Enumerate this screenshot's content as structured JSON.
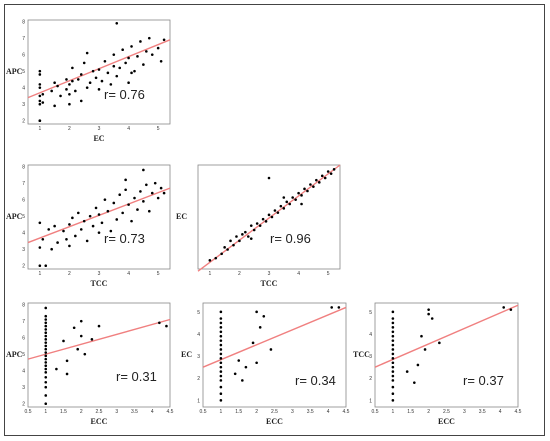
{
  "colors": {
    "points": "#000000",
    "fit_line": "#f08080",
    "frame": "#444444"
  },
  "chart_data": [
    {
      "type": "scatter",
      "xlabel": "EC",
      "ylabel": "APC",
      "annotation": "r= 0.76",
      "xticks": [
        "1",
        "2",
        "3",
        "4",
        "5"
      ],
      "yticks": [
        "2",
        "3",
        "4",
        "5",
        "6",
        "7",
        "8"
      ],
      "xlim": [
        0.6,
        5.4
      ],
      "ylim": [
        1.8,
        8.1
      ],
      "fit": [
        [
          0.6,
          3.4
        ],
        [
          5.4,
          6.9
        ]
      ],
      "points": [
        [
          1,
          2
        ],
        [
          1,
          2
        ],
        [
          1,
          3
        ],
        [
          1,
          3.2
        ],
        [
          1,
          3.5
        ],
        [
          1,
          4
        ],
        [
          1,
          4.2
        ],
        [
          1,
          4.8
        ],
        [
          1,
          5
        ],
        [
          1.1,
          3.1
        ],
        [
          1.1,
          3.6
        ],
        [
          1.4,
          3.8
        ],
        [
          1.5,
          4.3
        ],
        [
          1.5,
          2.9
        ],
        [
          1.6,
          4.1
        ],
        [
          1.7,
          3.5
        ],
        [
          1.9,
          4.5
        ],
        [
          1.9,
          3.9
        ],
        [
          2,
          3
        ],
        [
          2,
          3.6
        ],
        [
          2,
          4.2
        ],
        [
          2.1,
          5.2
        ],
        [
          2.1,
          4.4
        ],
        [
          2.2,
          3.8
        ],
        [
          2.3,
          4.5
        ],
        [
          2.4,
          3.2
        ],
        [
          2.4,
          4.8
        ],
        [
          2.5,
          5.5
        ],
        [
          2.6,
          4
        ],
        [
          2.7,
          4.3
        ],
        [
          2.8,
          5
        ],
        [
          2.9,
          4.6
        ],
        [
          3,
          5.1
        ],
        [
          3,
          3.9
        ],
        [
          3.1,
          4.4
        ],
        [
          3.2,
          5.6
        ],
        [
          3.3,
          4.9
        ],
        [
          3.4,
          4.2
        ],
        [
          3.5,
          5.3
        ],
        [
          3.5,
          6
        ],
        [
          3.6,
          4.7
        ],
        [
          3.7,
          5.2
        ],
        [
          3.8,
          6.3
        ],
        [
          3.9,
          5.5
        ],
        [
          4,
          4.3
        ],
        [
          4,
          5.8
        ],
        [
          4.1,
          6.5
        ],
        [
          4.2,
          5
        ],
        [
          4.3,
          5.9
        ],
        [
          4.4,
          6.8
        ],
        [
          4.5,
          5.4
        ],
        [
          4.6,
          6.2
        ],
        [
          4.7,
          7
        ],
        [
          4.8,
          6
        ],
        [
          5,
          6.4
        ],
        [
          5.1,
          5.6
        ],
        [
          5.2,
          6.9
        ],
        [
          3.6,
          7.9
        ],
        [
          4.1,
          4.9
        ],
        [
          2.6,
          6.1
        ]
      ]
    },
    {
      "type": "scatter",
      "xlabel": "TCC",
      "ylabel": "APC",
      "annotation": "r= 0.73",
      "xticks": [
        "1",
        "2",
        "3",
        "4",
        "5"
      ],
      "yticks": [
        "2",
        "3",
        "4",
        "5",
        "6",
        "7",
        "8"
      ],
      "xlim": [
        0.6,
        5.4
      ],
      "ylim": [
        1.8,
        8.1
      ],
      "fit": [
        [
          0.6,
          3.4
        ],
        [
          5.4,
          6.7
        ]
      ],
      "points": [
        [
          1,
          2
        ],
        [
          1,
          3.1
        ],
        [
          1,
          4.6
        ],
        [
          1.1,
          3.6
        ],
        [
          1.2,
          2
        ],
        [
          1.3,
          4.2
        ],
        [
          1.4,
          3
        ],
        [
          1.5,
          4.4
        ],
        [
          1.6,
          3.4
        ],
        [
          1.8,
          4.1
        ],
        [
          1.9,
          3.6
        ],
        [
          2,
          4.5
        ],
        [
          2,
          3.2
        ],
        [
          2.1,
          4.9
        ],
        [
          2.2,
          3.8
        ],
        [
          2.3,
          5.2
        ],
        [
          2.4,
          4.2
        ],
        [
          2.5,
          4.7
        ],
        [
          2.6,
          3.5
        ],
        [
          2.7,
          5
        ],
        [
          2.8,
          4.4
        ],
        [
          2.9,
          5.5
        ],
        [
          3,
          4
        ],
        [
          3,
          5.1
        ],
        [
          3.1,
          4.6
        ],
        [
          3.2,
          6
        ],
        [
          3.3,
          5.3
        ],
        [
          3.4,
          4.1
        ],
        [
          3.5,
          5.8
        ],
        [
          3.6,
          4.8
        ],
        [
          3.7,
          6.3
        ],
        [
          3.8,
          5.2
        ],
        [
          3.9,
          6.6
        ],
        [
          4,
          5.7
        ],
        [
          4.1,
          4.7
        ],
        [
          4.2,
          6.1
        ],
        [
          4.3,
          5.4
        ],
        [
          4.4,
          6.5
        ],
        [
          4.5,
          5.9
        ],
        [
          4.6,
          6.9
        ],
        [
          4.7,
          5.3
        ],
        [
          4.8,
          6.4
        ],
        [
          4.9,
          7
        ],
        [
          5,
          6.1
        ],
        [
          5.1,
          6.7
        ],
        [
          5.2,
          6.4
        ],
        [
          4.5,
          7.8
        ],
        [
          3.9,
          7.2
        ]
      ]
    },
    {
      "type": "scatter",
      "xlabel": "TCC",
      "ylabel": "EC",
      "annotation": "r= 0.96",
      "xticks": [
        "1",
        "2",
        "3",
        "4",
        "5"
      ],
      "yticks": [],
      "xlim": [
        0.6,
        5.4
      ],
      "ylim": [
        0.6,
        5.4
      ],
      "fit": [
        [
          0.6,
          0.5
        ],
        [
          5.4,
          5.4
        ]
      ],
      "points": [
        [
          1,
          1
        ],
        [
          1.2,
          1.1
        ],
        [
          1.4,
          1.3
        ],
        [
          1.5,
          1.6
        ],
        [
          1.6,
          1.5
        ],
        [
          1.7,
          1.9
        ],
        [
          1.8,
          1.7
        ],
        [
          1.9,
          2.1
        ],
        [
          2,
          1.9
        ],
        [
          2.1,
          2.2
        ],
        [
          2.2,
          2.3
        ],
        [
          2.3,
          2.1
        ],
        [
          2.4,
          2.6
        ],
        [
          2.5,
          2.4
        ],
        [
          2.6,
          2.7
        ],
        [
          2.7,
          2.6
        ],
        [
          2.8,
          2.9
        ],
        [
          2.9,
          2.8
        ],
        [
          3,
          3.1
        ],
        [
          3.1,
          3
        ],
        [
          3.2,
          3.3
        ],
        [
          3.3,
          3.2
        ],
        [
          3.4,
          3.5
        ],
        [
          3.5,
          3.4
        ],
        [
          3.6,
          3.7
        ],
        [
          3.7,
          3.6
        ],
        [
          3.8,
          3.9
        ],
        [
          3.9,
          3.8
        ],
        [
          4,
          4.1
        ],
        [
          4.1,
          4
        ],
        [
          4.2,
          4.3
        ],
        [
          4.3,
          4.2
        ],
        [
          4.4,
          4.5
        ],
        [
          4.5,
          4.4
        ],
        [
          4.6,
          4.7
        ],
        [
          4.7,
          4.6
        ],
        [
          4.8,
          4.9
        ],
        [
          4.9,
          4.8
        ],
        [
          5,
          5.1
        ],
        [
          5.1,
          5
        ],
        [
          5.2,
          5.2
        ],
        [
          3,
          4.8
        ],
        [
          2.4,
          2.0
        ],
        [
          3.5,
          3.9
        ],
        [
          4.1,
          3.6
        ]
      ]
    },
    {
      "type": "scatter",
      "xlabel": "ECC",
      "ylabel": "APC",
      "annotation": "r= 0.31",
      "xticks": [],
      "yticks": [
        "2",
        "3",
        "4",
        "5",
        "6",
        "7",
        "8"
      ],
      "xlim": [
        0.5,
        4.5
      ],
      "ylim": [
        1.8,
        8.1
      ],
      "fit": [
        [
          0.5,
          4.7
        ],
        [
          4.5,
          7.1
        ]
      ],
      "points": [
        [
          1,
          2
        ],
        [
          1,
          2.5
        ],
        [
          1,
          3
        ],
        [
          1,
          3.3
        ],
        [
          1,
          3.6
        ],
        [
          1,
          3.9
        ],
        [
          1,
          4.1
        ],
        [
          1,
          4.3
        ],
        [
          1,
          4.5
        ],
        [
          1,
          4.7
        ],
        [
          1,
          4.9
        ],
        [
          1,
          5.1
        ],
        [
          1,
          5.3
        ],
        [
          1,
          5.5
        ],
        [
          1,
          5.7
        ],
        [
          1,
          5.9
        ],
        [
          1,
          6.1
        ],
        [
          1,
          6.3
        ],
        [
          1,
          6.5
        ],
        [
          1,
          6.7
        ],
        [
          1,
          6.9
        ],
        [
          1,
          7.1
        ],
        [
          1,
          7.3
        ],
        [
          1,
          7.8
        ],
        [
          1.3,
          4.1
        ],
        [
          1.5,
          5.8
        ],
        [
          1.6,
          3.8
        ],
        [
          1.6,
          4.6
        ],
        [
          1.8,
          6.6
        ],
        [
          1.9,
          5.3
        ],
        [
          2,
          7
        ],
        [
          2,
          6.1
        ],
        [
          2.1,
          5
        ],
        [
          2.3,
          5.9
        ],
        [
          2.5,
          6.7
        ],
        [
          4.2,
          6.9
        ],
        [
          4.4,
          6.7
        ]
      ]
    },
    {
      "type": "scatter",
      "xlabel": "ECC",
      "ylabel": "EC",
      "annotation": "r= 0.34",
      "xticks": [],
      "yticks": [
        "1",
        "2",
        "3",
        "4",
        "5"
      ],
      "xlim": [
        0.5,
        4.5
      ],
      "ylim": [
        0.7,
        5.4
      ],
      "fit": [
        [
          0.5,
          2.5
        ],
        [
          4.5,
          5.2
        ]
      ],
      "points": [
        [
          1,
          1
        ],
        [
          1,
          1.3
        ],
        [
          1,
          1.6
        ],
        [
          1,
          1.9
        ],
        [
          1,
          2.1
        ],
        [
          1,
          2.3
        ],
        [
          1,
          2.5
        ],
        [
          1,
          2.7
        ],
        [
          1,
          2.9
        ],
        [
          1,
          3.1
        ],
        [
          1,
          3.3
        ],
        [
          1,
          3.5
        ],
        [
          1,
          3.7
        ],
        [
          1,
          3.9
        ],
        [
          1,
          4.1
        ],
        [
          1,
          4.3
        ],
        [
          1,
          4.5
        ],
        [
          1,
          4.7
        ],
        [
          1,
          5
        ],
        [
          1.4,
          2.2
        ],
        [
          1.5,
          2.8
        ],
        [
          1.6,
          1.9
        ],
        [
          1.7,
          2.5
        ],
        [
          1.9,
          3.6
        ],
        [
          2,
          2.7
        ],
        [
          2.1,
          4.3
        ],
        [
          2,
          5
        ],
        [
          2.2,
          4.8
        ],
        [
          2.4,
          3.3
        ],
        [
          4.1,
          5.2
        ],
        [
          4.3,
          5.2
        ]
      ]
    },
    {
      "type": "scatter",
      "xlabel": "ECC",
      "ylabel": "TCC",
      "annotation": "r= 0.37",
      "xticks": [],
      "yticks": [
        "1",
        "2",
        "3",
        "4",
        "5"
      ],
      "xlim": [
        0.5,
        4.5
      ],
      "ylim": [
        0.7,
        5.4
      ],
      "fit": [
        [
          0.5,
          2.5
        ],
        [
          4.5,
          5.3
        ]
      ],
      "points": [
        [
          1,
          1
        ],
        [
          1,
          1.3
        ],
        [
          1,
          1.6
        ],
        [
          1,
          1.9
        ],
        [
          1,
          2.1
        ],
        [
          1,
          2.3
        ],
        [
          1,
          2.5
        ],
        [
          1,
          2.7
        ],
        [
          1,
          2.9
        ],
        [
          1,
          3.1
        ],
        [
          1,
          3.3
        ],
        [
          1,
          3.5
        ],
        [
          1,
          3.7
        ],
        [
          1,
          3.9
        ],
        [
          1,
          4.1
        ],
        [
          1,
          4.3
        ],
        [
          1,
          4.5
        ],
        [
          1,
          4.7
        ],
        [
          1,
          5
        ],
        [
          1.4,
          2.3
        ],
        [
          1.6,
          1.8
        ],
        [
          1.7,
          2.6
        ],
        [
          1.8,
          3.9
        ],
        [
          1.9,
          3.3
        ],
        [
          2,
          4.9
        ],
        [
          2,
          5.1
        ],
        [
          2.1,
          4.7
        ],
        [
          2.3,
          3.6
        ],
        [
          4.1,
          5.2
        ],
        [
          4.3,
          5.1
        ]
      ]
    }
  ]
}
